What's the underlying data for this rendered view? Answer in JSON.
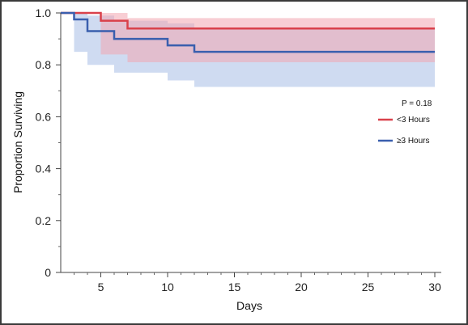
{
  "chart_data": {
    "type": "line",
    "subtype": "kaplan-meier survival curve with confidence bands",
    "xlabel": "Days",
    "ylabel": "Proportion Surviving",
    "xlim": [
      2,
      30
    ],
    "ylim": [
      0,
      1.0
    ],
    "x_ticks": [
      5,
      10,
      15,
      20,
      25,
      30
    ],
    "y_ticks": [
      0,
      0.2,
      0.4,
      0.6,
      0.8,
      1.0
    ],
    "y_tick_labels": [
      "0",
      "0.2",
      "0.4",
      "0.6",
      "0.8",
      "1.0"
    ],
    "annotation": "P = 0.18",
    "legend_position": "right",
    "grid": false,
    "series": [
      {
        "name": "<3 Hours",
        "color": "#d9414b",
        "band_color": "#f2a6b0",
        "steps": [
          {
            "x": 2,
            "y": 1.0
          },
          {
            "x": 5,
            "y": 0.97
          },
          {
            "x": 7,
            "y": 0.94
          },
          {
            "x": 30,
            "y": 0.94
          }
        ],
        "upper": [
          {
            "x": 2,
            "y": 1.0
          },
          {
            "x": 7,
            "y": 0.98
          },
          {
            "x": 30,
            "y": 0.98
          }
        ],
        "lower": [
          {
            "x": 2,
            "y": 1.0
          },
          {
            "x": 5,
            "y": 0.84
          },
          {
            "x": 7,
            "y": 0.81
          },
          {
            "x": 30,
            "y": 0.81
          }
        ]
      },
      {
        "name": "≥3 Hours",
        "color": "#3a5fae",
        "band_color": "#a7bde6",
        "steps": [
          {
            "x": 2,
            "y": 1.0
          },
          {
            "x": 3,
            "y": 0.975
          },
          {
            "x": 4,
            "y": 0.93
          },
          {
            "x": 6,
            "y": 0.9
          },
          {
            "x": 10,
            "y": 0.875
          },
          {
            "x": 12,
            "y": 0.85
          },
          {
            "x": 30,
            "y": 0.85
          }
        ],
        "upper": [
          {
            "x": 2,
            "y": 1.0
          },
          {
            "x": 4,
            "y": 0.99
          },
          {
            "x": 6,
            "y": 0.97
          },
          {
            "x": 10,
            "y": 0.96
          },
          {
            "x": 12,
            "y": 0.94
          },
          {
            "x": 30,
            "y": 0.94
          }
        ],
        "lower": [
          {
            "x": 2,
            "y": 1.0
          },
          {
            "x": 3,
            "y": 0.85
          },
          {
            "x": 4,
            "y": 0.8
          },
          {
            "x": 6,
            "y": 0.77
          },
          {
            "x": 10,
            "y": 0.74
          },
          {
            "x": 12,
            "y": 0.715
          },
          {
            "x": 30,
            "y": 0.715
          }
        ]
      }
    ]
  }
}
